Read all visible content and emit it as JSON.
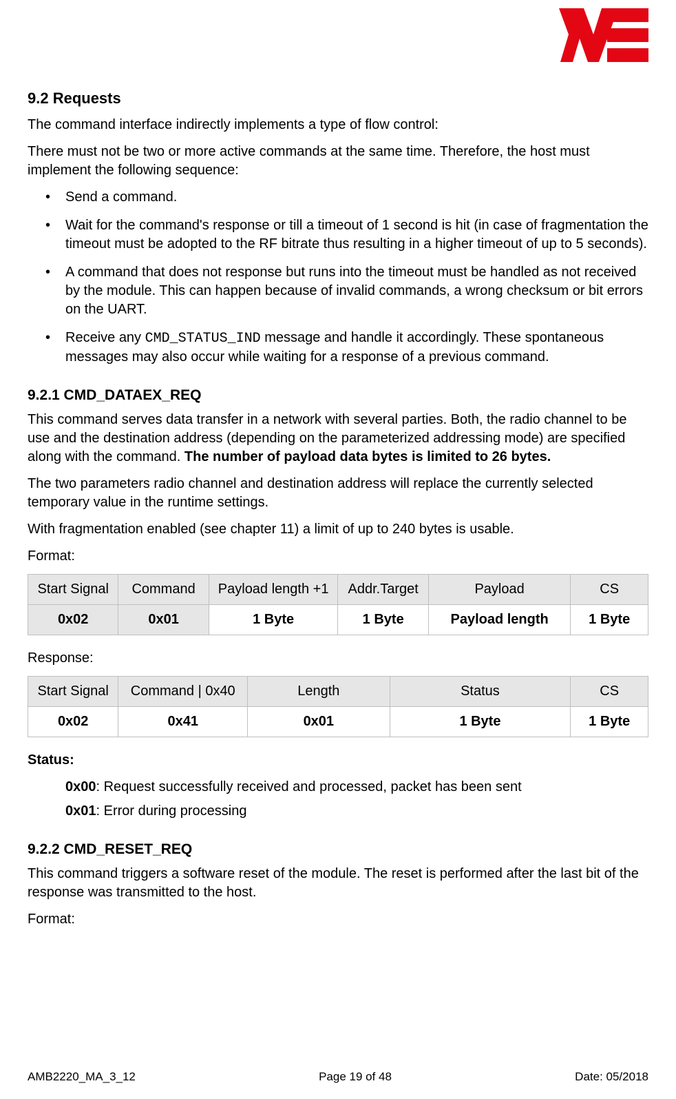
{
  "logo": {
    "fill": "#e30613",
    "width": 130,
    "height": 78
  },
  "section_9_2": {
    "heading": "9.2 Requests",
    "p1": "The command interface indirectly implements a type of flow control:",
    "p2": "There must not be two or more active commands at the same time. Therefore, the host must implement the following sequence:",
    "bullets": {
      "b1": "Send a command.",
      "b2": "Wait for the command's response or till a timeout of 1 second is hit (in case of fragmentation the timeout must be adopted to the RF bitrate thus resulting in a higher timeout of up to 5 seconds).",
      "b3": "A command that does not response but runs into the timeout must be handled as not received by the module. This can happen because of invalid commands, a wrong checksum or bit errors on the UART.",
      "b4_pre": "Receive any ",
      "b4_code": "CMD_STATUS_IND",
      "b4_post": " message and handle it accordingly. These spontaneous messages may also occur while waiting for a response of a previous command."
    }
  },
  "section_9_2_1": {
    "heading": "9.2.1 CMD_DATAEX_REQ",
    "p1_pre": "This command serves data transfer in a network with several parties. Both, the radio channel to be use and the destination address (depending on the parameterized addressing mode) are specified along with the command. ",
    "p1_bold": "The number of payload data bytes is limited to 26 bytes.",
    "p2": "The two parameters radio channel and destination address will replace the currently selected temporary value in the runtime settings.",
    "p3": "With fragmentation enabled (see chapter 11) a limit of up to 240 bytes is usable.",
    "format_label": "Format:",
    "table_format": {
      "headers": [
        "Start Signal",
        "Command",
        "Payload length +1",
        "Addr.Target",
        "Payload",
        "CS"
      ],
      "row": [
        "0x02",
        "0x01",
        "1 Byte",
        "1 Byte",
        "Payload length",
        "1 Byte"
      ],
      "col_widths": [
        "14%",
        "14%",
        "20%",
        "14%",
        "22%",
        "12%"
      ],
      "shaded_cells": [
        0,
        1
      ]
    },
    "response_label": "Response:",
    "table_response": {
      "headers": [
        "Start Signal",
        "Command | 0x40",
        "Length",
        "Status",
        "CS"
      ],
      "row": [
        "0x02",
        "0x41",
        "0x01",
        "1 Byte",
        "1 Byte"
      ],
      "col_widths": [
        "14%",
        "20%",
        "22%",
        "28%",
        "12%"
      ]
    },
    "status_heading": "Status:",
    "status_lines": [
      {
        "code": "0x00",
        "text": ": Request successfully received and processed, packet has been sent"
      },
      {
        "code": "0x01",
        "text": ": Error during processing"
      }
    ]
  },
  "section_9_2_2": {
    "heading": "9.2.2 CMD_RESET_REQ",
    "p1": "This command triggers a software reset of the module. The reset is performed after the last bit of the response was transmitted to the host.",
    "format_label": "Format:"
  },
  "footer": {
    "left": "AMB2220_MA_3_12",
    "center": "Page 19 of 48",
    "right": "Date: 05/2018"
  }
}
